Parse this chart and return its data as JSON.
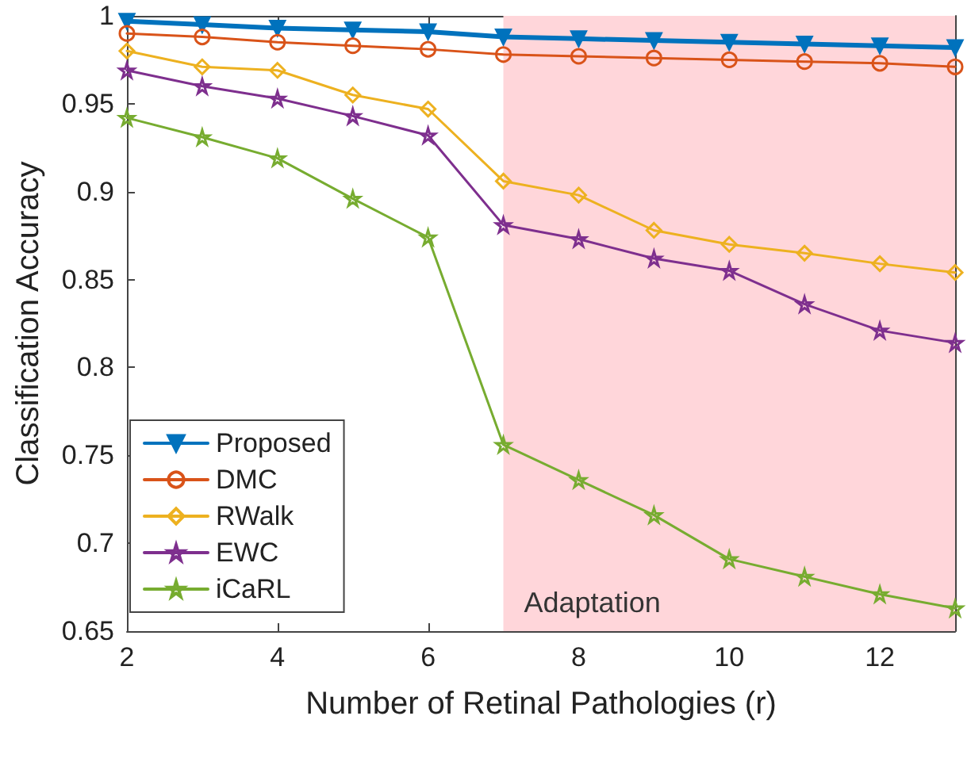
{
  "chart_data": {
    "type": "line",
    "xlabel": "Number of Retinal Pathologies (r)",
    "ylabel": "Classification Accuracy",
    "x": [
      2,
      3,
      4,
      5,
      6,
      7,
      8,
      9,
      10,
      11,
      12,
      13
    ],
    "series": [
      {
        "name": "Proposed",
        "color": "#0072bd",
        "marker": "triangle",
        "values": [
          0.997,
          0.995,
          0.993,
          0.992,
          0.991,
          0.988,
          0.987,
          0.986,
          0.985,
          0.984,
          0.983,
          0.982
        ]
      },
      {
        "name": "DMC",
        "color": "#d95319",
        "marker": "circle",
        "values": [
          0.99,
          0.988,
          0.985,
          0.983,
          0.981,
          0.978,
          0.977,
          0.976,
          0.975,
          0.974,
          0.973,
          0.971
        ]
      },
      {
        "name": "RWalk",
        "color": "#edb120",
        "marker": "diamond",
        "values": [
          0.98,
          0.971,
          0.969,
          0.955,
          0.947,
          0.906,
          0.898,
          0.878,
          0.87,
          0.865,
          0.859,
          0.854
        ]
      },
      {
        "name": "EWC",
        "color": "#7e2f8e",
        "marker": "star",
        "values": [
          0.969,
          0.96,
          0.953,
          0.943,
          0.932,
          0.881,
          0.873,
          0.862,
          0.855,
          0.836,
          0.821,
          0.814
        ]
      },
      {
        "name": "iCaRL",
        "color": "#77ac30",
        "marker": "star",
        "values": [
          0.942,
          0.931,
          0.919,
          0.896,
          0.874,
          0.756,
          0.736,
          0.716,
          0.691,
          0.681,
          0.671,
          0.663
        ]
      }
    ],
    "xlim": [
      2,
      13
    ],
    "xticks": [
      2,
      4,
      6,
      8,
      10,
      12
    ],
    "ylim": [
      0.65,
      1
    ],
    "yticks": [
      0.65,
      0.7,
      0.75,
      0.8,
      0.85,
      0.9,
      0.95,
      1
    ],
    "bands": [
      {
        "axis": "x",
        "from": 7,
        "to": 13,
        "label": "Adaptation",
        "color": "#ffd6da"
      }
    ],
    "grid": false,
    "legend": "bottom left",
    "line_style": "solid"
  }
}
